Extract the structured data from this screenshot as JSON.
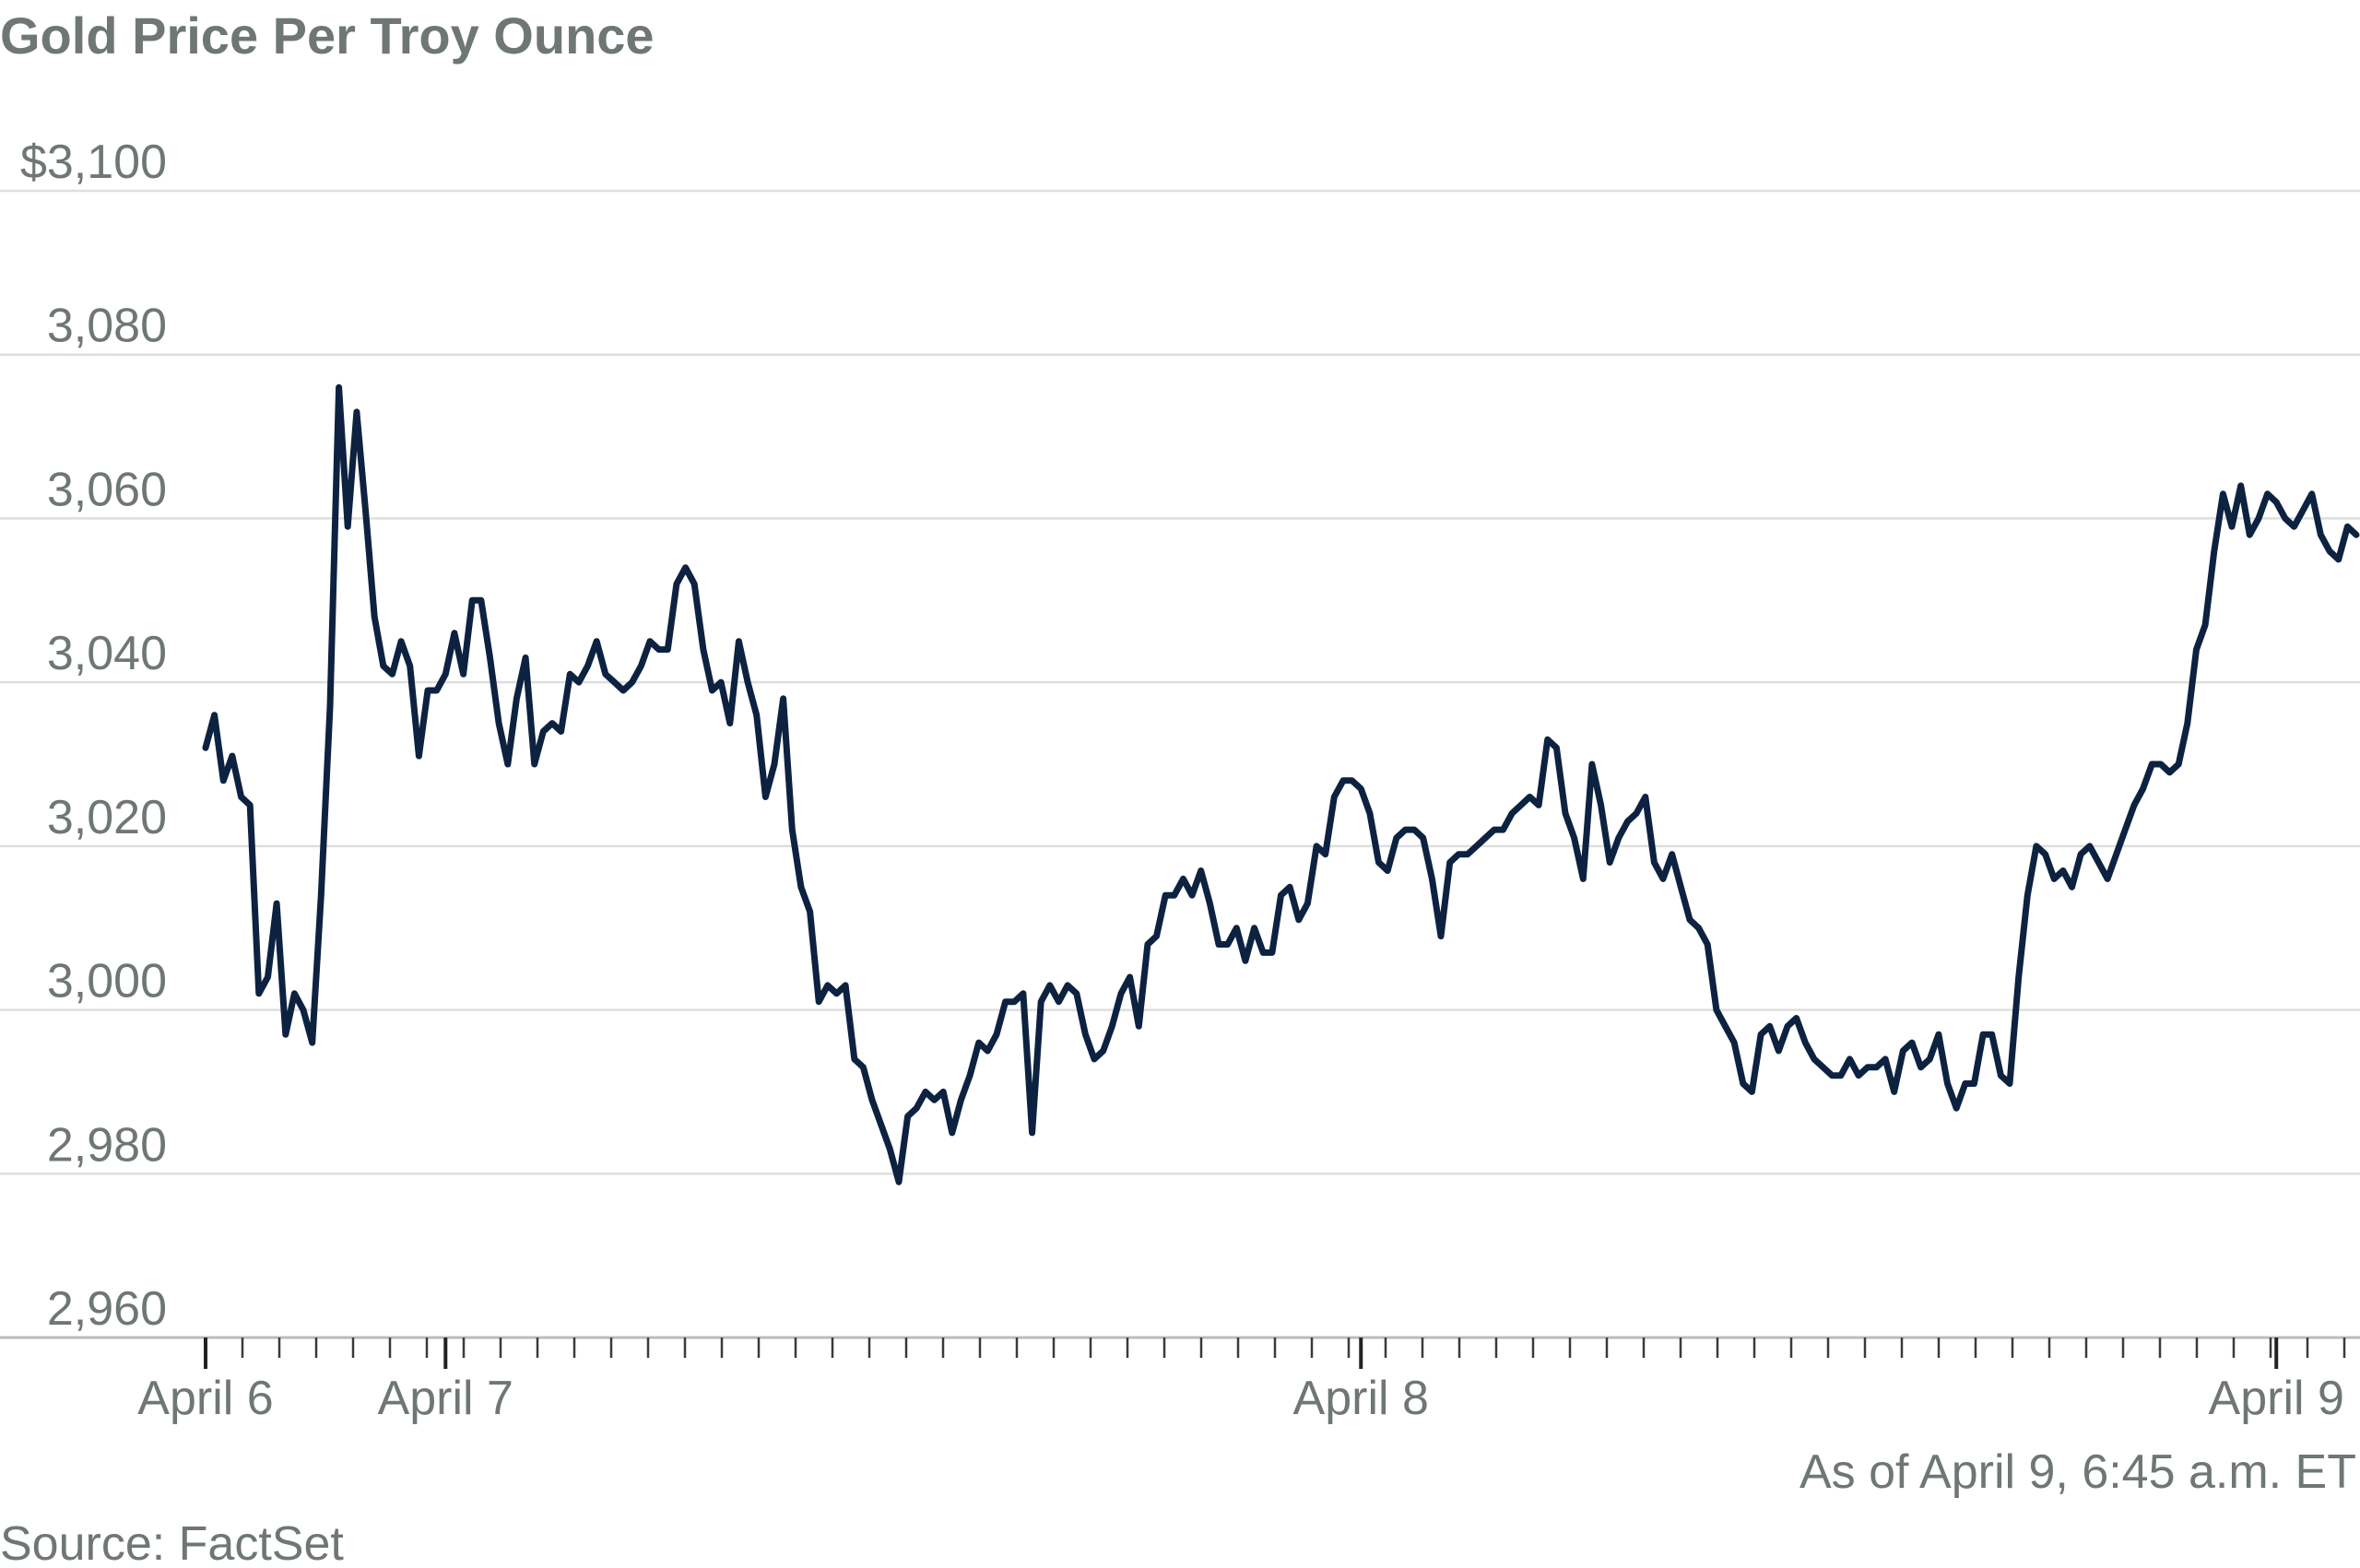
{
  "chart_data": {
    "type": "line",
    "title": "Gold Price Per Troy Ounce",
    "xlabel": "",
    "ylabel": "",
    "ylim": [
      2960,
      3100
    ],
    "y_ticks": [
      {
        "value": 3100,
        "label": "$3,100"
      },
      {
        "value": 3080,
        "label": "3,080"
      },
      {
        "value": 3060,
        "label": "3,060"
      },
      {
        "value": 3040,
        "label": "3,040"
      },
      {
        "value": 3020,
        "label": "3,020"
      },
      {
        "value": 3000,
        "label": "3,000"
      },
      {
        "value": 2980,
        "label": "2,980"
      },
      {
        "value": 2960,
        "label": "2,960"
      }
    ],
    "x_labels": [
      {
        "label": "April 6",
        "index": 0
      },
      {
        "label": "April 7",
        "index": 27
      },
      {
        "label": "April 8",
        "index": 130
      },
      {
        "label": "April 9",
        "index": 233
      }
    ],
    "grid": true,
    "series_color": "#0d2240",
    "values": [
      3032,
      3036,
      3028,
      3031,
      3026,
      3025,
      3002,
      3004,
      3013,
      2997,
      3002,
      3000,
      2996,
      3014,
      3037,
      3076,
      3059,
      3073,
      3061,
      3048,
      3042,
      3041,
      3045,
      3042,
      3031,
      3039,
      3039,
      3041,
      3046,
      3041,
      3050,
      3050,
      3043,
      3035,
      3030,
      3038,
      3043,
      3030,
      3034,
      3035,
      3034,
      3041,
      3040,
      3042,
      3045,
      3041,
      3040,
      3039,
      3040,
      3042,
      3045,
      3044,
      3044,
      3052,
      3054,
      3052,
      3044,
      3039,
      3040,
      3035,
      3045,
      3040,
      3036,
      3026,
      3030,
      3038,
      3022,
      3015,
      3012,
      3001,
      3003,
      3002,
      3003,
      2994,
      2993,
      2989,
      2986,
      2983,
      2979,
      2987,
      2988,
      2990,
      2989,
      2990,
      2985,
      2989,
      2992,
      2996,
      2995,
      2997,
      3001,
      3001,
      3002,
      2985,
      3001,
      3003,
      3001,
      3003,
      3002,
      2997,
      2994,
      2995,
      2998,
      3002,
      3004,
      2998,
      3008,
      3009,
      3014,
      3014,
      3016,
      3014,
      3017,
      3013,
      3008,
      3008,
      3010,
      3006,
      3010,
      3007,
      3007,
      3014,
      3015,
      3011,
      3013,
      3020,
      3019,
      3026,
      3028,
      3028,
      3027,
      3024,
      3018,
      3017,
      3021,
      3022,
      3022,
      3021,
      3016,
      3009,
      3018,
      3019,
      3019,
      3020,
      3021,
      3022,
      3022,
      3024,
      3025,
      3026,
      3025,
      3033,
      3032,
      3024,
      3021,
      3016,
      3030,
      3025,
      3018,
      3021,
      3023,
      3024,
      3026,
      3018,
      3016,
      3019,
      3015,
      3011,
      3010,
      3008,
      3000,
      2998,
      2996,
      2991,
      2990,
      2997,
      2998,
      2995,
      2998,
      2999,
      2996,
      2994,
      2993,
      2992,
      2992,
      2994,
      2992,
      2993,
      2993,
      2994,
      2990,
      2995,
      2996,
      2993,
      2994,
      2997,
      2991,
      2988,
      2991,
      2991,
      2997,
      2997,
      2992,
      2991,
      3004,
      3014,
      3020,
      3019,
      3016,
      3017,
      3015,
      3019,
      3020,
      3018,
      3016,
      3019,
      3022,
      3025,
      3027,
      3030,
      3030,
      3029,
      3030,
      3035,
      3044,
      3047,
      3056,
      3063,
      3059,
      3064,
      3058,
      3060,
      3063,
      3062,
      3060,
      3059,
      3061,
      3063,
      3058,
      3056,
      3055,
      3059,
      3058
    ],
    "note": "As of April 9, 6:45 a.m. ET",
    "source": "Source: FactSet"
  }
}
